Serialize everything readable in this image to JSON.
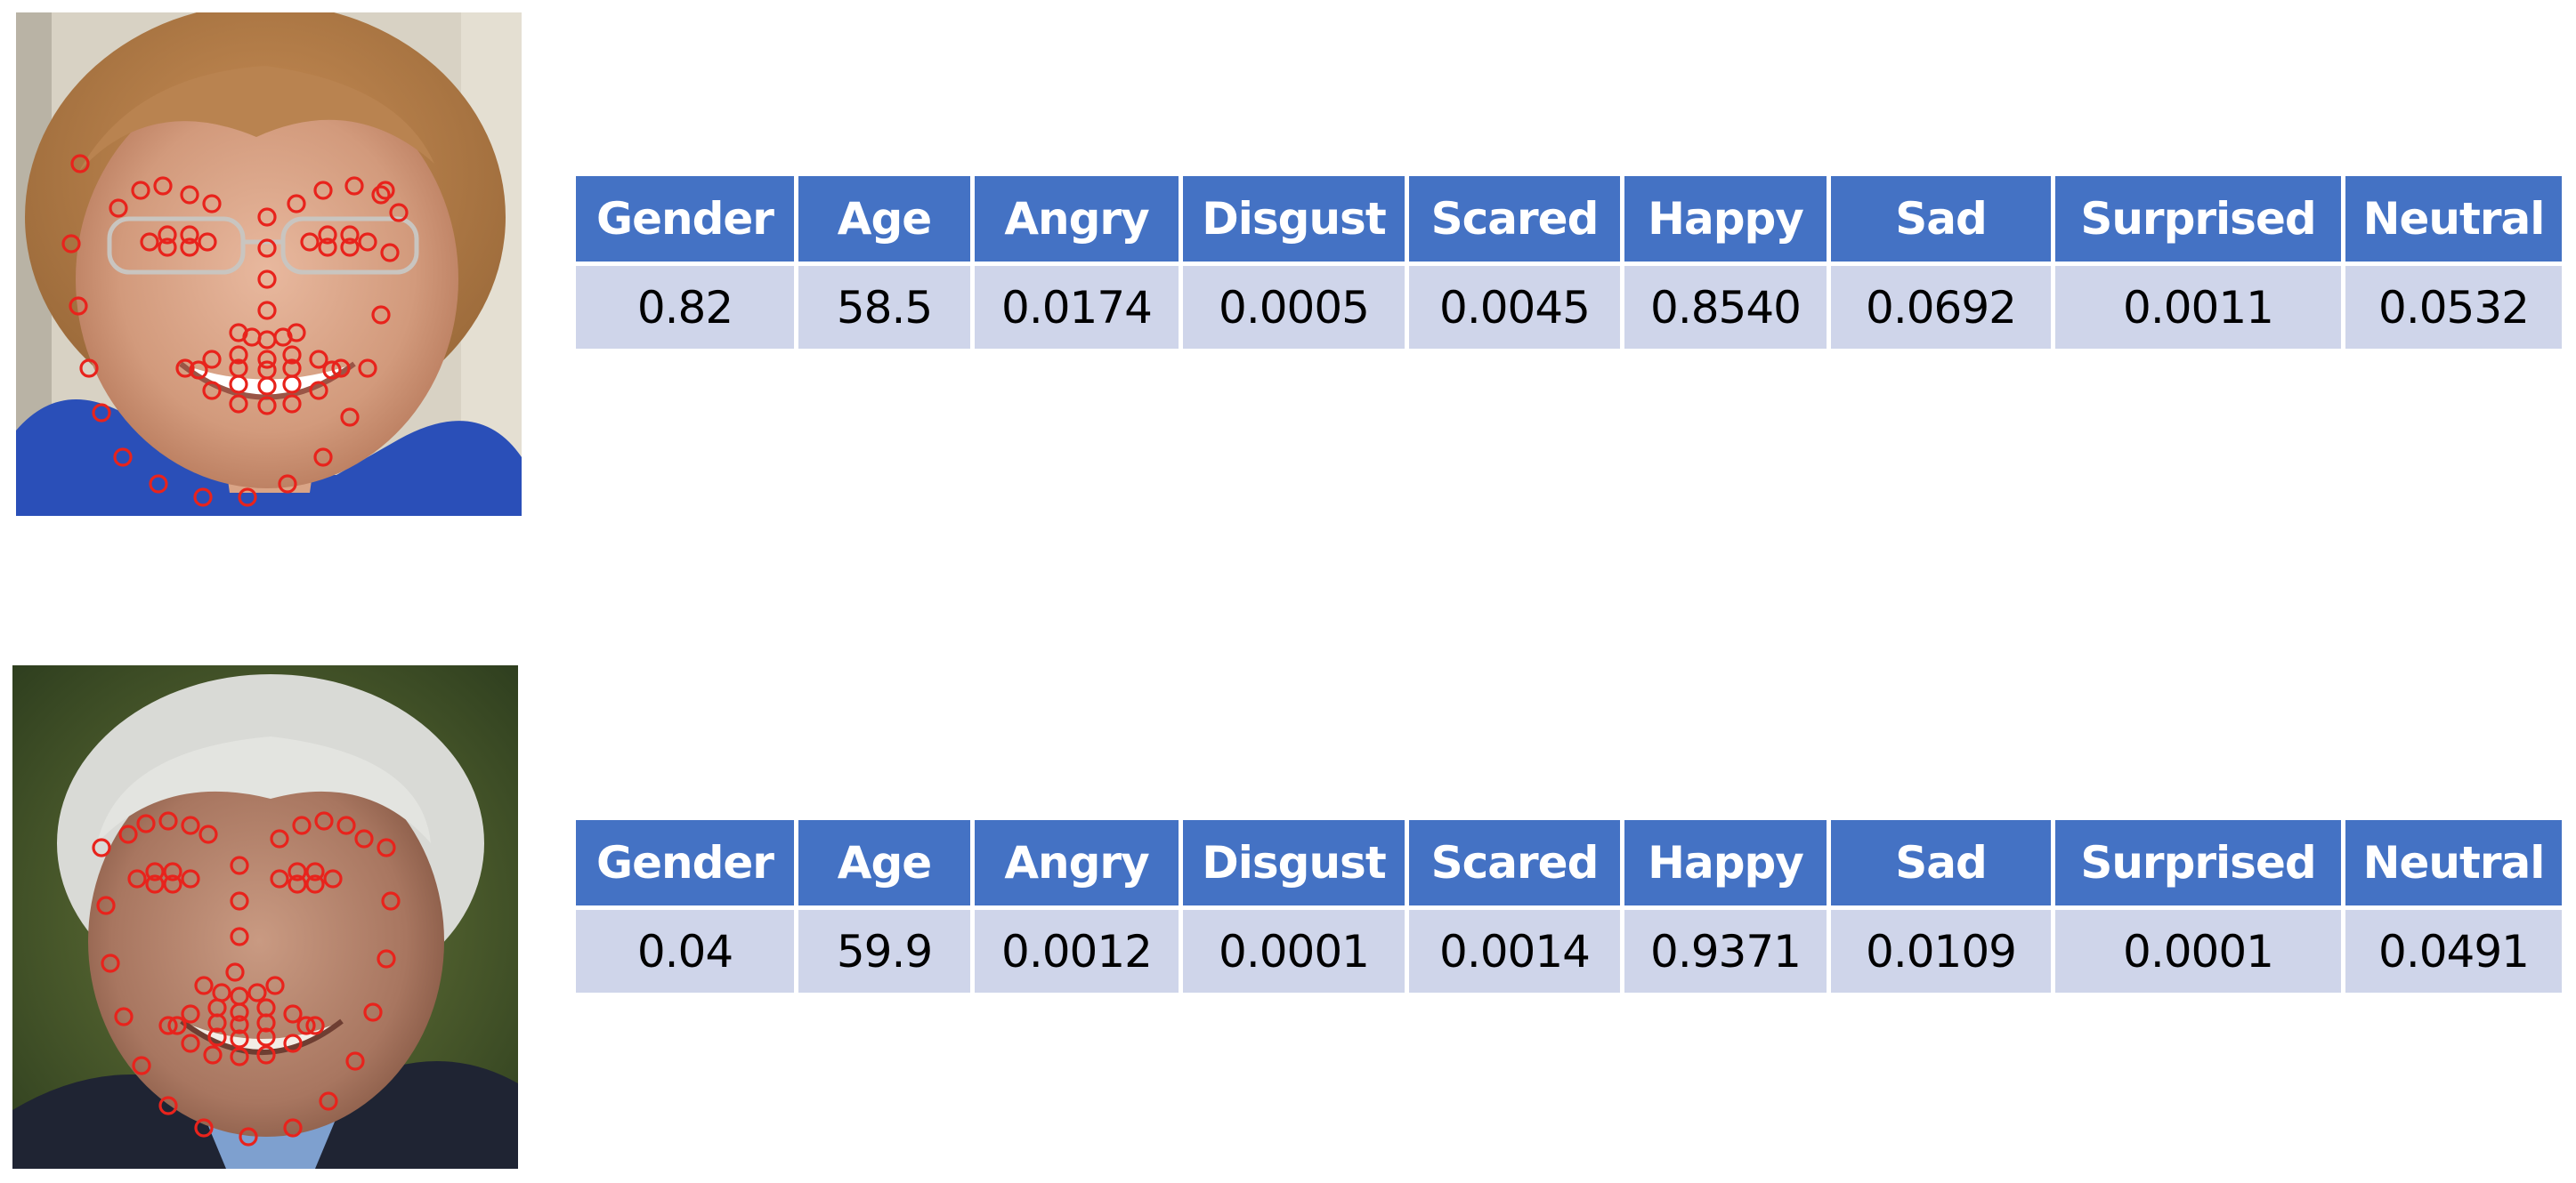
{
  "colors": {
    "header_bg": "#4472c4",
    "header_text": "#ffffff",
    "cell_bg": "#cfd5ea",
    "landmark": "#e8231c"
  },
  "images": [
    {
      "icon": "face-photo-woman-with-landmarks"
    },
    {
      "icon": "face-photo-man-with-landmarks"
    }
  ],
  "tables": [
    {
      "headers": [
        "Gender",
        "Age",
        "Angry",
        "Disgust",
        "Scared",
        "Happy",
        "Sad",
        "Surprised",
        "Neutral"
      ],
      "values": [
        "0.82",
        "58.5",
        "0.0174",
        "0.0005",
        "0.0045",
        "0.8540",
        "0.0692",
        "0.0011",
        "0.0532"
      ]
    },
    {
      "headers": [
        "Gender",
        "Age",
        "Angry",
        "Disgust",
        "Scared",
        "Happy",
        "Sad",
        "Surprised",
        "Neutral"
      ],
      "values": [
        "0.04",
        "59.9",
        "0.0012",
        "0.0001",
        "0.0014",
        "0.9371",
        "0.0109",
        "0.0001",
        "0.0491"
      ]
    }
  ]
}
